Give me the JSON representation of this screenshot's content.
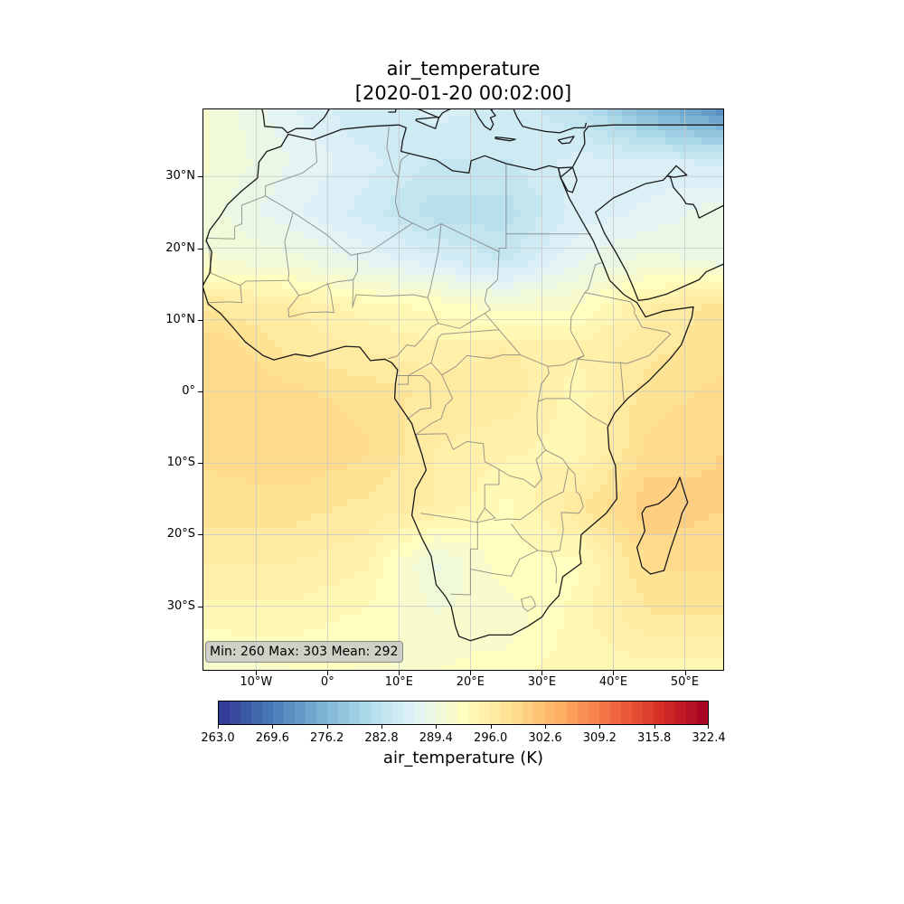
{
  "title": {
    "line1": "air_temperature",
    "line2": "[2020-01-20 00:02:00]"
  },
  "map": {
    "lon_range": [
      -17.5,
      55.5
    ],
    "lat_range": [
      -39,
      39.5
    ],
    "lat_ticks": [
      {
        "value": 30,
        "label": "30°N"
      },
      {
        "value": 20,
        "label": "20°N"
      },
      {
        "value": 10,
        "label": "10°N"
      },
      {
        "value": 0,
        "label": "0°"
      },
      {
        "value": -10,
        "label": "10°S"
      },
      {
        "value": -20,
        "label": "20°S"
      },
      {
        "value": -30,
        "label": "30°S"
      }
    ],
    "lon_ticks": [
      {
        "value": -10,
        "label": "10°W"
      },
      {
        "value": 0,
        "label": "0°"
      },
      {
        "value": 10,
        "label": "10°E"
      },
      {
        "value": 20,
        "label": "20°E"
      },
      {
        "value": 30,
        "label": "30°E"
      },
      {
        "value": 40,
        "label": "40°E"
      },
      {
        "value": 50,
        "label": "50°E"
      }
    ],
    "gridlines": true,
    "stats_text": "Min: 260 Max: 303 Mean: 292",
    "field_grid": {
      "lons": [
        -17.5,
        -5,
        5,
        15,
        25,
        35,
        45,
        55.5
      ],
      "lats": [
        39.5,
        32,
        25,
        18,
        12,
        6,
        0,
        -8,
        -16,
        -24,
        -32,
        -39
      ],
      "values_K": [
        [
          291,
          287,
          284,
          286,
          285,
          283,
          276,
          271
        ],
        [
          291,
          288,
          286,
          284,
          284,
          286,
          286,
          285
        ],
        [
          290,
          287,
          285,
          282,
          282,
          286,
          287,
          289
        ],
        [
          291,
          290,
          288,
          286,
          284,
          288,
          290,
          289
        ],
        [
          297,
          296,
          294,
          293,
          291,
          292,
          296,
          298
        ],
        [
          300,
          297,
          296,
          295,
          296,
          295,
          297,
          298
        ],
        [
          300,
          299,
          298,
          297,
          297,
          294,
          298,
          299
        ],
        [
          299,
          300,
          299,
          296,
          295,
          294,
          299,
          300
        ],
        [
          298,
          298,
          297,
          296,
          293,
          297,
          301,
          300
        ],
        [
          296,
          296,
          295,
          289,
          293,
          293,
          299,
          299
        ],
        [
          294,
          294,
          293,
          291,
          291,
          294,
          297,
          297
        ],
        [
          291,
          292,
          292,
          292,
          293,
          294,
          294,
          294
        ]
      ]
    },
    "colors": {
      "coastline": "#1a1a1a",
      "borders": "#7a7a7a",
      "grid": "#c8c8c8"
    }
  },
  "colorbar": {
    "label": "air_temperature (K)",
    "min": 263.0,
    "max": 322.4,
    "tick_values": [
      263.0,
      269.6,
      276.2,
      282.8,
      289.4,
      296.0,
      302.6,
      309.2,
      315.8,
      322.4
    ],
    "tick_labels": [
      "263.0",
      "269.6",
      "276.2",
      "282.8",
      "289.4",
      "296.0",
      "302.6",
      "309.2",
      "315.8",
      "322.4"
    ],
    "n_levels": 45,
    "colormap_stops": [
      "#313695",
      "#4575b4",
      "#74add1",
      "#abd9e9",
      "#e0f3f8",
      "#ffffbf",
      "#fee090",
      "#fdae61",
      "#f46d43",
      "#d73027",
      "#a50026"
    ]
  }
}
